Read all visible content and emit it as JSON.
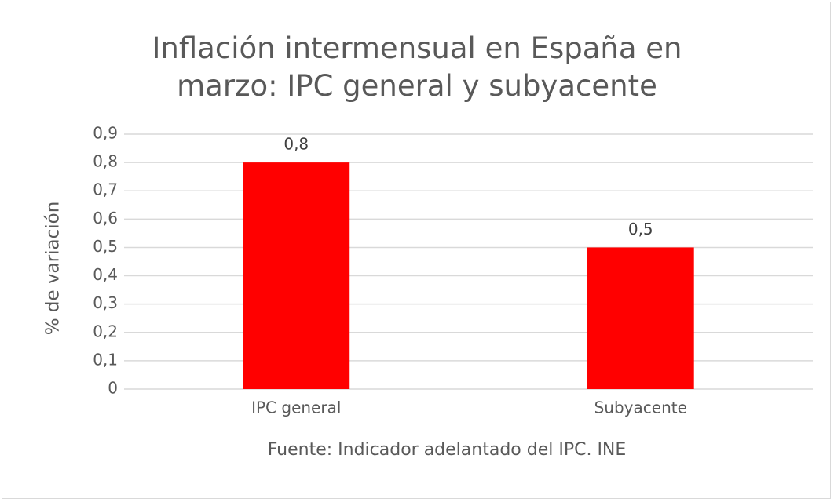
{
  "chart_data": {
    "type": "bar",
    "title": "Inflación intermensual en España en marzo: IPC general y subyacente",
    "y_label": "% de variación",
    "source": "Fuente: Indicador adelantado del IPC. INE",
    "categories": [
      "IPC general",
      "Subyacente"
    ],
    "values": [
      0.8,
      0.5
    ],
    "value_labels": [
      "0,8",
      "0,5"
    ],
    "color": "#ff0000",
    "ylim": [
      0,
      0.9
    ],
    "yticks": [
      0,
      {
        "value": 0.1,
        "label": "0,1"
      },
      {
        "value": 0.2,
        "label": "0,2"
      },
      {
        "value": 0.3,
        "label": "0,3"
      },
      {
        "value": 0.4,
        "label": "0,4"
      },
      {
        "value": 0.5,
        "label": "0,5"
      },
      {
        "value": 0.6,
        "label": "0,6"
      },
      {
        "value": 0.7,
        "label": "0,7"
      },
      {
        "value": 0.8,
        "label": "0,8"
      },
      {
        "value": 0.9,
        "label": "0,9"
      }
    ],
    "grid": true
  }
}
